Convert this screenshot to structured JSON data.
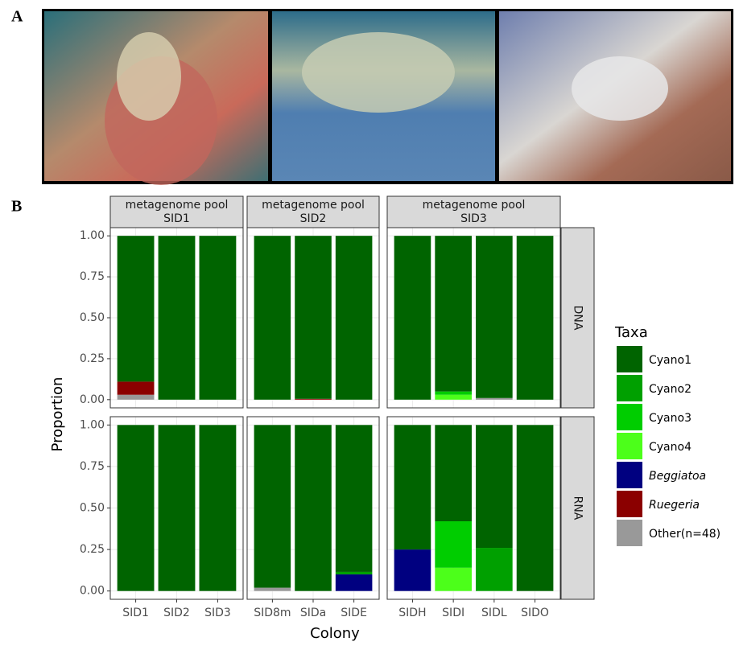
{
  "panel_labels": [
    "A",
    "B"
  ],
  "chart_data": {
    "type": "bar",
    "stacked": true,
    "y_label": "Proportion",
    "x_label": "Colony",
    "legend_title": "Taxa",
    "ylim": [
      -0.05,
      1.05
    ],
    "yticks": [
      {
        "value": 0,
        "label": "0.00"
      },
      {
        "value": 0.25,
        "label": "0.25"
      },
      {
        "value": 0.5,
        "label": "0.50"
      },
      {
        "value": 0.75,
        "label": "0.75"
      },
      {
        "value": 1,
        "label": "1.00"
      }
    ],
    "grid": true,
    "columns": [
      {
        "strip": [
          "metagenome pool",
          "SID1"
        ],
        "categories": [
          "SID1",
          "SID2",
          "SID3"
        ]
      },
      {
        "strip": [
          "metagenome pool",
          "SID2"
        ],
        "categories": [
          "SID8m",
          "SIDa",
          "SIDE"
        ]
      },
      {
        "strip": [
          "metagenome pool",
          "SID3"
        ],
        "categories": [
          "SIDH",
          "SIDI",
          "SIDL",
          "SIDO"
        ]
      }
    ],
    "rows": [
      "DNA",
      "RNA"
    ],
    "series": [
      {
        "name": "Cyano1",
        "color": "#006400",
        "italic": false,
        "values": [
          [
            0.89,
            1,
            1,
            1,
            0.995,
            1,
            1,
            0.95,
            0.99,
            1
          ],
          [
            1,
            1,
            1,
            0.98,
            1,
            0.885,
            0.75,
            0.58,
            0.74,
            1
          ]
        ]
      },
      {
        "name": "Cyano2",
        "color": "#00a000",
        "italic": false,
        "values": [
          [
            0,
            0,
            0,
            0,
            0,
            0,
            0,
            0,
            0,
            0
          ],
          [
            0,
            0,
            0,
            0,
            0,
            0.015,
            0,
            0,
            0.26,
            0
          ]
        ]
      },
      {
        "name": "Cyano3",
        "color": "#00cd00",
        "italic": false,
        "values": [
          [
            0,
            0,
            0,
            0,
            0,
            0,
            0,
            0.02,
            0,
            0
          ],
          [
            0,
            0,
            0,
            0,
            0,
            0,
            0,
            0.28,
            0,
            0
          ]
        ]
      },
      {
        "name": "Cyano4",
        "color": "#4cff1a",
        "italic": false,
        "values": [
          [
            0,
            0,
            0,
            0,
            0,
            0,
            0,
            0.03,
            0,
            0
          ],
          [
            0,
            0,
            0,
            0,
            0,
            0,
            0,
            0.14,
            0,
            0
          ]
        ]
      },
      {
        "name": "Beggiatoa",
        "color": "#000080",
        "italic": true,
        "values": [
          [
            0,
            0,
            0,
            0,
            0,
            0,
            0,
            0,
            0,
            0
          ],
          [
            0,
            0,
            0,
            0,
            0,
            0.1,
            0.25,
            0,
            0,
            0
          ]
        ]
      },
      {
        "name": "Ruegeria",
        "color": "#8b0000",
        "italic": true,
        "values": [
          [
            0.08,
            0,
            0,
            0,
            0.005,
            0,
            0,
            0,
            0,
            0
          ],
          [
            0,
            0,
            0,
            0,
            0,
            0,
            0,
            0,
            0,
            0
          ]
        ]
      },
      {
        "name": "Other(n=48)",
        "color": "#999999",
        "italic": false,
        "values": [
          [
            0.03,
            0,
            0,
            0,
            0,
            0,
            0,
            0,
            0.01,
            0
          ],
          [
            0,
            0,
            0,
            0.02,
            0,
            0,
            0,
            0,
            0,
            0
          ]
        ]
      }
    ]
  }
}
